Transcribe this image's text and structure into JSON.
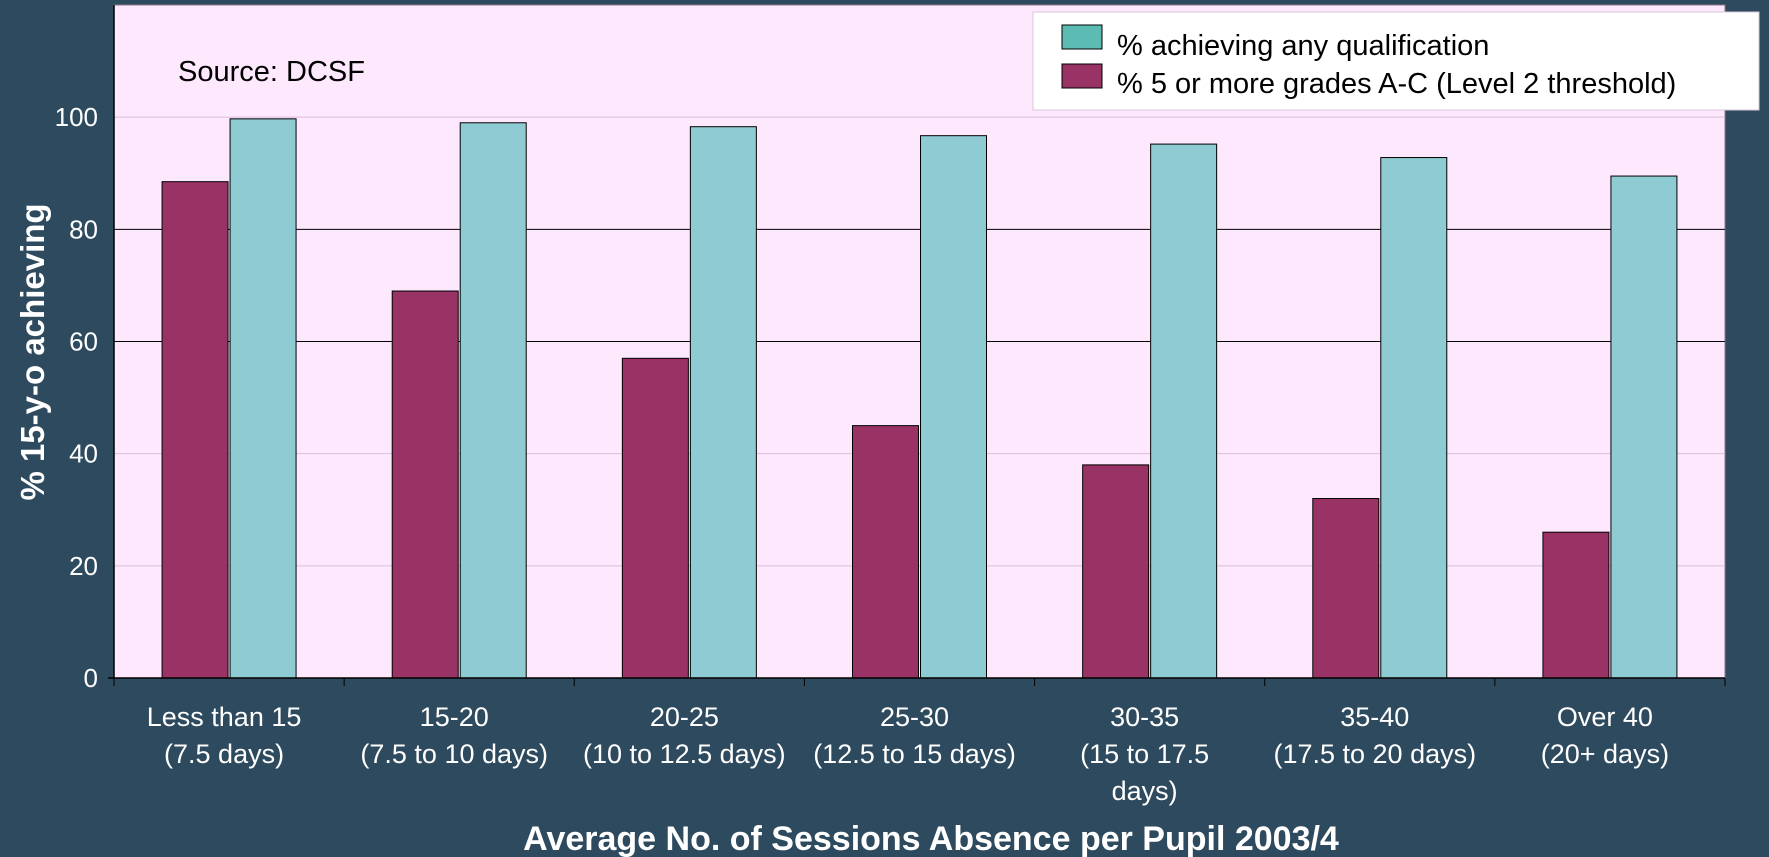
{
  "chart_data": {
    "type": "bar",
    "annotation": "Source: DCSF",
    "xlabel": "Average No. of Sessions Absence per Pupil 2003/4",
    "ylabel": "% 15-y-o achieving",
    "ylim": [
      0,
      120
    ],
    "yticks": [
      0,
      20,
      40,
      60,
      80,
      100
    ],
    "categories": [
      [
        "Less than 15",
        "(7.5 days)"
      ],
      [
        "15-20",
        "(7.5 to 10 days)"
      ],
      [
        "20-25",
        "(10 to 12.5 days)"
      ],
      [
        "25-30",
        "(12.5 to 15 days)"
      ],
      [
        "30-35",
        "(15 to 17.5",
        "days)"
      ],
      [
        "35-40",
        "(17.5 to 20 days)"
      ],
      [
        "Over 40",
        "(20+ days)"
      ]
    ],
    "series": [
      {
        "name": "% 5 or more grades A-C (Level 2 threshold)",
        "color": "#993366",
        "values": [
          88.5,
          69,
          57,
          45,
          38,
          32,
          26
        ]
      },
      {
        "name": "% achieving any qualification",
        "color": "#8ecbd2",
        "legend_color": "#5cbcb4",
        "values": [
          99.7,
          99,
          98.3,
          96.7,
          95.2,
          92.8,
          89.5
        ]
      }
    ],
    "legend_order": [
      1,
      0
    ],
    "legend_position": "top-right",
    "grid": "horizontal",
    "colors": {
      "page_background": "#2e4a5e",
      "plot_background": "#fde8fd"
    }
  }
}
